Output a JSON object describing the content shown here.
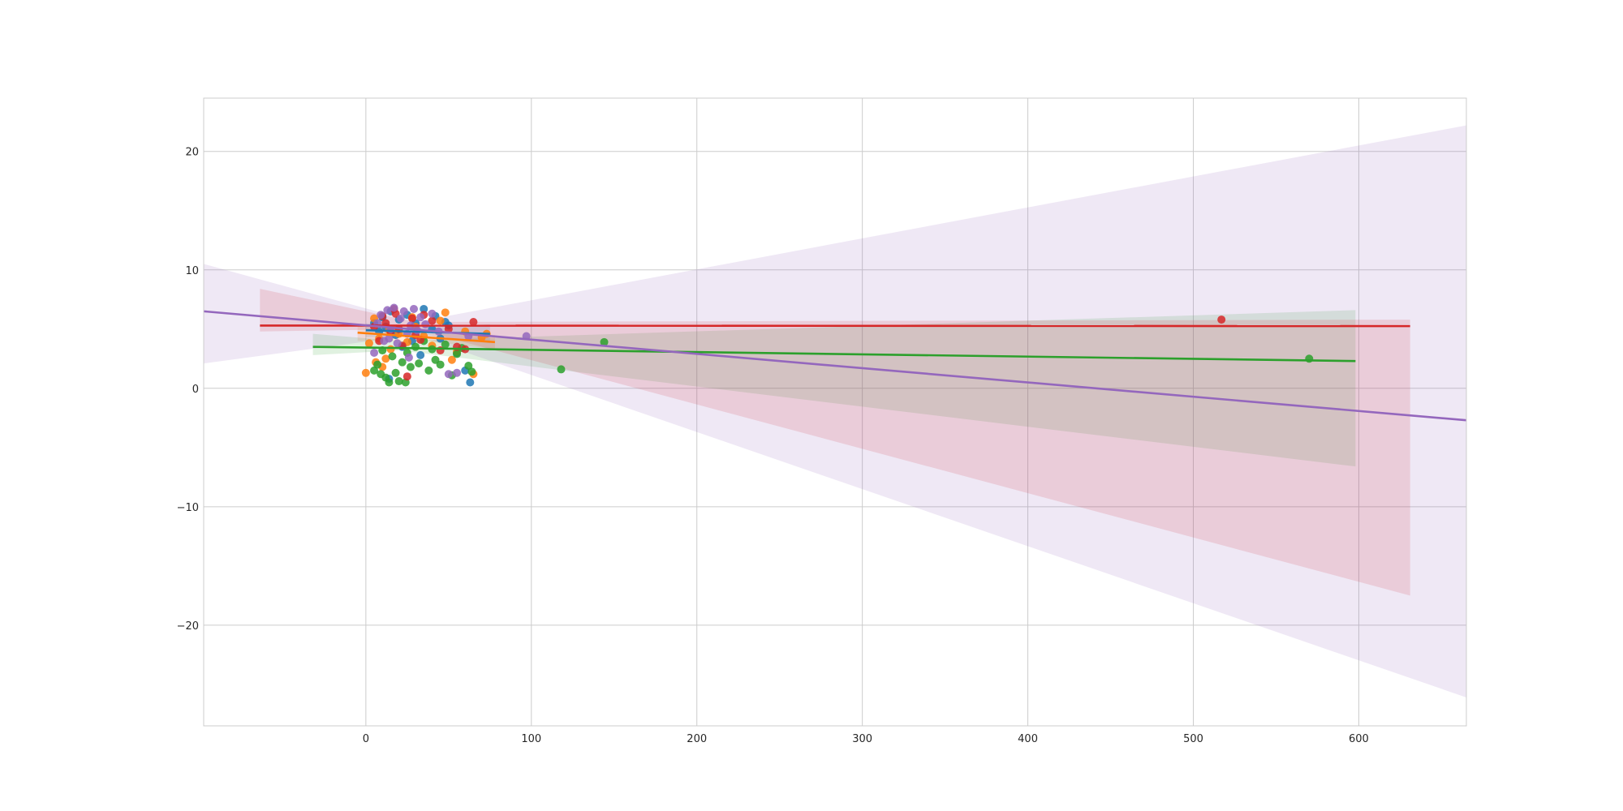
{
  "chart_data": {
    "type": "scatter",
    "title": "",
    "xlabel": "",
    "ylabel": "",
    "xlim": [
      -98,
      665
    ],
    "ylim": [
      -28.5,
      24.5
    ],
    "xticks": [
      0,
      100,
      200,
      300,
      400,
      500,
      600
    ],
    "xtick_labels": [
      "0",
      "100",
      "200",
      "300",
      "400",
      "500",
      "600"
    ],
    "yticks": [
      -20,
      -10,
      0,
      10,
      20
    ],
    "ytick_labels": [
      "−20",
      "−10",
      "0",
      "10",
      "20"
    ],
    "grid": true,
    "legend": "none",
    "series": [
      {
        "color": "#1f77b4",
        "points": [
          [
            5,
            5.5
          ],
          [
            8,
            4.8
          ],
          [
            10,
            6.0
          ],
          [
            12,
            5.2
          ],
          [
            15,
            6.5
          ],
          [
            18,
            4.5
          ],
          [
            20,
            5.8
          ],
          [
            25,
            6.2
          ],
          [
            28,
            4.0
          ],
          [
            30,
            5.5
          ],
          [
            35,
            6.7
          ],
          [
            40,
            5.0
          ],
          [
            45,
            4.2
          ],
          [
            50,
            5.3
          ],
          [
            55,
            3.0
          ],
          [
            60,
            1.5
          ],
          [
            63,
            0.5
          ],
          [
            14,
            0.8
          ],
          [
            22,
            3.5
          ],
          [
            33,
            2.8
          ],
          [
            42,
            6.1
          ],
          [
            48,
            5.6
          ]
        ],
        "fit": {
          "x": [
            0,
            75
          ],
          "y": [
            4.9,
            4.6
          ]
        },
        "ci": {
          "x": [
            0,
            37,
            75
          ],
          "upper": [
            5.5,
            5.1,
            5.4
          ],
          "lower": [
            4.3,
            4.5,
            3.8
          ]
        }
      },
      {
        "color": "#ff7f0e",
        "points": [
          [
            0,
            1.3
          ],
          [
            2,
            3.8
          ],
          [
            5,
            5.9
          ],
          [
            8,
            4.2
          ],
          [
            10,
            1.8
          ],
          [
            12,
            2.5
          ],
          [
            15,
            3.3
          ],
          [
            18,
            5.0
          ],
          [
            20,
            4.6
          ],
          [
            25,
            3.9
          ],
          [
            30,
            5.2
          ],
          [
            35,
            4.4
          ],
          [
            40,
            3.6
          ],
          [
            45,
            5.7
          ],
          [
            48,
            6.4
          ],
          [
            52,
            2.4
          ],
          [
            55,
            3.1
          ],
          [
            60,
            4.8
          ],
          [
            65,
            1.2
          ],
          [
            70,
            4.3
          ],
          [
            73,
            4.6
          ],
          [
            6,
            2.2
          ],
          [
            14,
            4.9
          ],
          [
            28,
            6.0
          ]
        ],
        "fit": {
          "x": [
            -5,
            78
          ],
          "y": [
            4.7,
            3.9
          ]
        },
        "ci": {
          "x": [
            -5,
            36,
            78
          ],
          "upper": [
            5.4,
            4.6,
            4.5
          ],
          "lower": [
            4.0,
            4.0,
            3.3
          ]
        }
      },
      {
        "color": "#2ca02c",
        "points": [
          [
            5,
            1.5
          ],
          [
            7,
            2.0
          ],
          [
            10,
            3.2
          ],
          [
            12,
            0.9
          ],
          [
            14,
            0.5
          ],
          [
            16,
            2.7
          ],
          [
            18,
            1.3
          ],
          [
            20,
            0.6
          ],
          [
            22,
            2.2
          ],
          [
            25,
            3.0
          ],
          [
            27,
            1.8
          ],
          [
            30,
            3.5
          ],
          [
            32,
            2.1
          ],
          [
            35,
            4.0
          ],
          [
            38,
            1.5
          ],
          [
            40,
            3.3
          ],
          [
            42,
            2.4
          ],
          [
            45,
            2.0
          ],
          [
            48,
            3.7
          ],
          [
            52,
            1.1
          ],
          [
            55,
            2.9
          ],
          [
            58,
            3.4
          ],
          [
            62,
            1.9
          ],
          [
            64,
            1.4
          ],
          [
            118,
            1.6
          ],
          [
            144,
            3.9
          ],
          [
            570,
            2.5
          ],
          [
            24,
            0.5
          ],
          [
            9,
            1.2
          ]
        ],
        "fit": {
          "x": [
            -32,
            598
          ],
          "y": [
            3.5,
            2.3
          ]
        },
        "ci": {
          "x": [
            -32,
            20,
            598
          ],
          "upper": [
            4.6,
            4.0,
            6.6
          ],
          "lower": [
            2.8,
            3.2,
            -6.6
          ]
        }
      },
      {
        "color": "#d62728",
        "points": [
          [
            5,
            5.2
          ],
          [
            8,
            4.0
          ],
          [
            10,
            6.1
          ],
          [
            12,
            5.5
          ],
          [
            15,
            4.8
          ],
          [
            18,
            6.3
          ],
          [
            20,
            5.0
          ],
          [
            22,
            3.6
          ],
          [
            25,
            1.0
          ],
          [
            28,
            5.9
          ],
          [
            30,
            4.5
          ],
          [
            35,
            6.2
          ],
          [
            40,
            5.7
          ],
          [
            45,
            3.2
          ],
          [
            50,
            5.0
          ],
          [
            55,
            3.5
          ],
          [
            60,
            3.3
          ],
          [
            65,
            5.6
          ],
          [
            517,
            5.8
          ],
          [
            17,
            6.7
          ],
          [
            33,
            4.1
          ]
        ],
        "fit": {
          "x": [
            -64,
            631
          ],
          "y": [
            5.3,
            5.25
          ]
        },
        "ci": {
          "x": [
            -64,
            30,
            631
          ],
          "upper": [
            8.4,
            5.6,
            5.8
          ],
          "lower": [
            4.8,
            5.0,
            -17.5
          ]
        }
      },
      {
        "color": "#9467bd",
        "points": [
          [
            5,
            3.0
          ],
          [
            7,
            5.5
          ],
          [
            9,
            6.2
          ],
          [
            11,
            4.0
          ],
          [
            13,
            6.6
          ],
          [
            15,
            5.0
          ],
          [
            17,
            6.8
          ],
          [
            19,
            3.8
          ],
          [
            21,
            5.9
          ],
          [
            23,
            6.5
          ],
          [
            25,
            4.6
          ],
          [
            27,
            5.3
          ],
          [
            29,
            6.7
          ],
          [
            31,
            4.9
          ],
          [
            33,
            6.0
          ],
          [
            36,
            5.4
          ],
          [
            40,
            6.3
          ],
          [
            44,
            4.8
          ],
          [
            50,
            1.2
          ],
          [
            55,
            1.3
          ],
          [
            62,
            4.4
          ],
          [
            97,
            4.4
          ],
          [
            14,
            4.2
          ],
          [
            26,
            2.6
          ]
        ],
        "fit": {
          "x": [
            -98,
            665
          ],
          "y": [
            6.5,
            -2.7
          ]
        },
        "ci": {
          "x": [
            -98,
            30,
            665
          ],
          "upper": [
            10.5,
            5.6,
            22.2
          ],
          "lower": [
            2.1,
            4.5,
            -26.1
          ]
        }
      }
    ]
  }
}
